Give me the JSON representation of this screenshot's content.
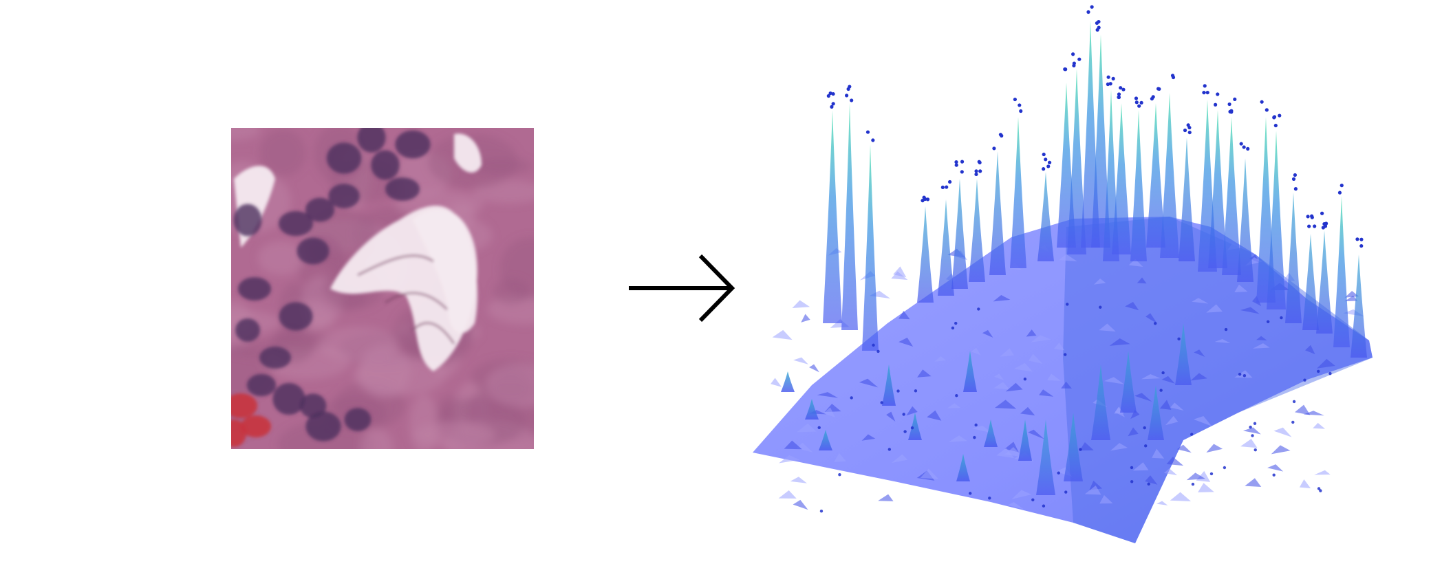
{
  "figure": {
    "input_panel": {
      "kind": "histology-tissue-patch",
      "stain": "hematoxylin-eosin",
      "colors": {
        "background": "#b06a92",
        "stroma": "#9b5a83",
        "nucleus": "#4e2f5e",
        "lumen": "#f4eaf0",
        "blood": "#c8343e"
      }
    },
    "connector": {
      "icon": "right-arrow-icon",
      "color": "#000000"
    },
    "output_panel": {
      "kind": "3d-surface-plot",
      "colormap": [
        "#7f88ff",
        "#4b5cf0",
        "#2f7fe0",
        "#33b7c6",
        "#3ee0a8"
      ],
      "point_color": "#2233cc"
    }
  }
}
